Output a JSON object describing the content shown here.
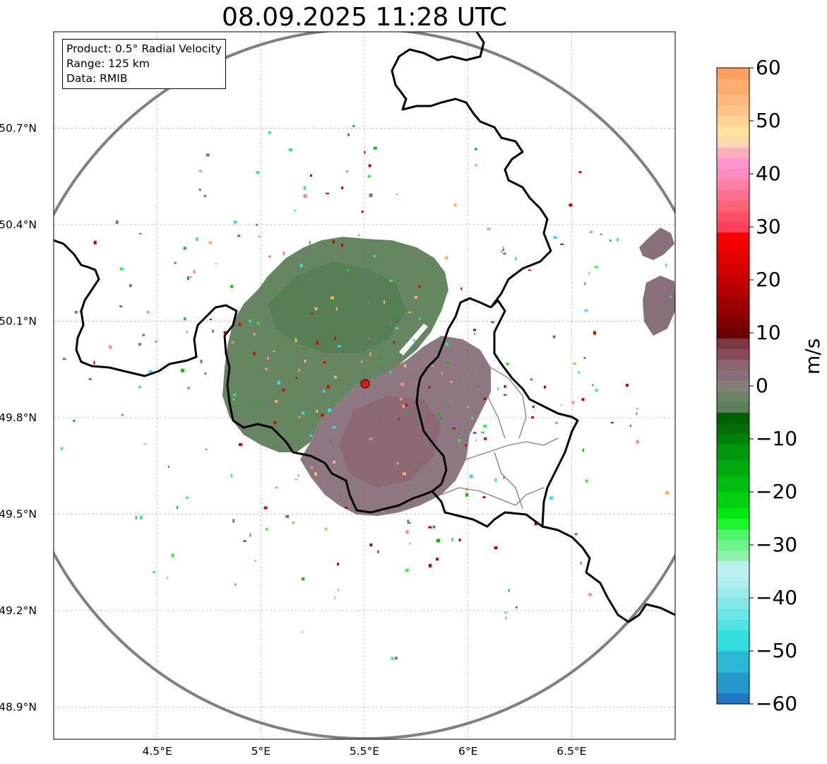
{
  "title": "08.09.2025 11:28 UTC",
  "info": {
    "product": "Product: 0.5° Radial Velocity",
    "range": "Range: 125 km",
    "source": "Data: RMIB"
  },
  "map": {
    "lon_range": [
      4.0,
      7.0
    ],
    "lat_range": [
      48.8,
      51.0
    ],
    "lat_ticks": [
      {
        "value": 50.7,
        "label": "50.7°N"
      },
      {
        "value": 50.4,
        "label": "50.4°N"
      },
      {
        "value": 50.1,
        "label": "50.1°N"
      },
      {
        "value": 49.8,
        "label": "49.8°N"
      },
      {
        "value": 49.5,
        "label": "49.5°N"
      },
      {
        "value": 49.2,
        "label": "49.2°N"
      },
      {
        "value": 48.9,
        "label": "48.9°N"
      }
    ],
    "lon_ticks": [
      {
        "value": 4.5,
        "label": "4.5°E"
      },
      {
        "value": 5.0,
        "label": "5°E"
      },
      {
        "value": 5.5,
        "label": "5.5°E"
      },
      {
        "value": 6.0,
        "label": "6°E"
      },
      {
        "value": 6.5,
        "label": "6.5°E"
      }
    ],
    "radar_site": {
      "lon": 5.505,
      "lat": 49.915
    },
    "range_ring_color": "#808080",
    "border_color": "#000000",
    "province_color": "#808080",
    "gridline_color": "#b0b0b0"
  },
  "colorbar": {
    "label": "m/s",
    "range": [
      -60,
      60
    ],
    "ticks": [
      {
        "value": 60,
        "label": "60"
      },
      {
        "value": 50,
        "label": "50"
      },
      {
        "value": 40,
        "label": "40"
      },
      {
        "value": 30,
        "label": "30"
      },
      {
        "value": 20,
        "label": "20"
      },
      {
        "value": 10,
        "label": "10"
      },
      {
        "value": 0,
        "label": "0"
      },
      {
        "value": -10,
        "label": "−10"
      },
      {
        "value": -20,
        "label": "−20"
      },
      {
        "value": -30,
        "label": "−30"
      },
      {
        "value": -40,
        "label": "−40"
      },
      {
        "value": -50,
        "label": "−50"
      },
      {
        "value": -60,
        "label": "−60"
      }
    ],
    "segments": [
      {
        "from": -60,
        "to": -58,
        "color": "#1f77c4"
      },
      {
        "from": -58,
        "to": -54,
        "color": "#2596cc"
      },
      {
        "from": -54,
        "to": -50,
        "color": "#2cb8d4"
      },
      {
        "from": -50,
        "to": -46,
        "color": "#33dede"
      },
      {
        "from": -46,
        "to": -44,
        "color": "#52e2e2"
      },
      {
        "from": -44,
        "to": -42,
        "color": "#6ae6e6"
      },
      {
        "from": -42,
        "to": -40,
        "color": "#84e8e8"
      },
      {
        "from": -40,
        "to": -38,
        "color": "#99ebeb"
      },
      {
        "from": -38,
        "to": -36,
        "color": "#aeeeee"
      },
      {
        "from": -36,
        "to": -33,
        "color": "#bff0f0"
      },
      {
        "from": -33,
        "to": -31,
        "color": "#8ef3a8"
      },
      {
        "from": -31,
        "to": -29,
        "color": "#6ef48a"
      },
      {
        "from": -29,
        "to": -27,
        "color": "#4ff56a"
      },
      {
        "from": -27,
        "to": -25,
        "color": "#1ef52a"
      },
      {
        "from": -25,
        "to": -23,
        "color": "#00ea0f"
      },
      {
        "from": -23,
        "to": -20,
        "color": "#00d212"
      },
      {
        "from": -20,
        "to": -17,
        "color": "#00be0f"
      },
      {
        "from": -17,
        "to": -14,
        "color": "#00aa0d"
      },
      {
        "from": -14,
        "to": -11,
        "color": "#00960b"
      },
      {
        "from": -11,
        "to": -9,
        "color": "#008208"
      },
      {
        "from": -9,
        "to": -7,
        "color": "#006e06"
      },
      {
        "from": -7,
        "to": -5,
        "color": "#005f04"
      },
      {
        "from": -5,
        "to": -3,
        "color": "#5e7f59"
      },
      {
        "from": -3,
        "to": -1,
        "color": "#6a8463"
      },
      {
        "from": -1,
        "to": 1,
        "color": "#857e77"
      },
      {
        "from": 1,
        "to": 3,
        "color": "#877079"
      },
      {
        "from": 3,
        "to": 5,
        "color": "#8a6570"
      },
      {
        "from": 5,
        "to": 7,
        "color": "#874a56"
      },
      {
        "from": 7,
        "to": 9,
        "color": "#7a3942"
      },
      {
        "from": 9,
        "to": 11,
        "color": "#6a0000"
      },
      {
        "from": 11,
        "to": 13,
        "color": "#800000"
      },
      {
        "from": 13,
        "to": 15,
        "color": "#960000"
      },
      {
        "from": 15,
        "to": 17,
        "color": "#a00000"
      },
      {
        "from": 17,
        "to": 19,
        "color": "#b40000"
      },
      {
        "from": 19,
        "to": 21,
        "color": "#c40000"
      },
      {
        "from": 21,
        "to": 23,
        "color": "#d40000"
      },
      {
        "from": 23,
        "to": 25,
        "color": "#e00000"
      },
      {
        "from": 25,
        "to": 27,
        "color": "#ee0000"
      },
      {
        "from": 27,
        "to": 29,
        "color": "#fa0000"
      },
      {
        "from": 29,
        "to": 31,
        "color": "#ff3e5b"
      },
      {
        "from": 31,
        "to": 33,
        "color": "#ff4f66"
      },
      {
        "from": 33,
        "to": 35,
        "color": "#ff6272"
      },
      {
        "from": 35,
        "to": 37,
        "color": "#ff6e8c"
      },
      {
        "from": 37,
        "to": 39,
        "color": "#ff7fa5"
      },
      {
        "from": 39,
        "to": 41,
        "color": "#ff8ac0"
      },
      {
        "from": 41,
        "to": 43,
        "color": "#ff95cc"
      },
      {
        "from": 43,
        "to": 45,
        "color": "#ffaebb"
      },
      {
        "from": 45,
        "to": 47,
        "color": "#ffd8b0"
      },
      {
        "from": 47,
        "to": 49,
        "color": "#ffe59c"
      },
      {
        "from": 49,
        "to": 51,
        "color": "#ffd494"
      },
      {
        "from": 51,
        "to": 53,
        "color": "#ffc488"
      },
      {
        "from": 53,
        "to": 55,
        "color": "#ffb87c"
      },
      {
        "from": 55,
        "to": 58,
        "color": "#ffac6e"
      },
      {
        "from": 58,
        "to": 60,
        "color": "#ff9e5e"
      }
    ]
  }
}
